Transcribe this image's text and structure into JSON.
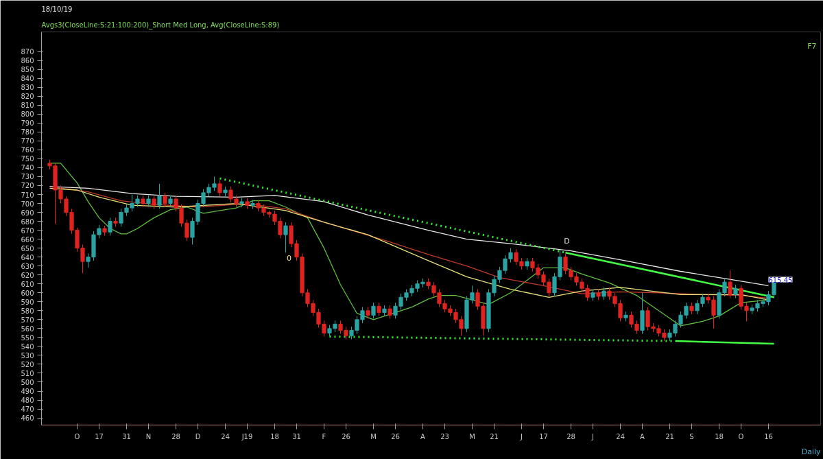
{
  "chart_data": {
    "type": "candlestick",
    "title": "18/10/19",
    "subtitle": "Avgs3(CloseLine:S:21:100:200)_Short Med Long, Avg(CloseLine:S:89)",
    "categories": [
      null,
      null,
      null,
      null,
      null,
      "O",
      null,
      null,
      null,
      "17",
      null,
      null,
      null,
      null,
      "31",
      null,
      null,
      null,
      "N",
      null,
      null,
      null,
      null,
      "28",
      null,
      null,
      null,
      "D",
      null,
      null,
      null,
      null,
      "24",
      null,
      null,
      null,
      "J19",
      null,
      null,
      null,
      null,
      "18",
      null,
      null,
      null,
      "31",
      null,
      null,
      null,
      null,
      "F",
      null,
      null,
      null,
      "26",
      null,
      null,
      null,
      null,
      "M",
      null,
      null,
      null,
      "26",
      null,
      null,
      null,
      null,
      "A",
      null,
      null,
      null,
      "23",
      null,
      null,
      null,
      null,
      "M",
      null,
      null,
      null,
      "21",
      null,
      null,
      null,
      null,
      "J",
      null,
      null,
      null,
      "17",
      null,
      null,
      null,
      null,
      "28",
      null,
      null,
      null,
      "J",
      null,
      null,
      null,
      null,
      "24",
      null,
      null,
      null,
      "A",
      null,
      null,
      null,
      null,
      "21",
      null,
      null,
      null,
      "S",
      null,
      null,
      null,
      null,
      "18",
      null,
      null,
      null,
      "O",
      null,
      null,
      null,
      null,
      "16",
      null
    ],
    "ohlc": [
      [
        745,
        749,
        738,
        742
      ],
      [
        742,
        745,
        677,
        715
      ],
      [
        715,
        720,
        700,
        705
      ],
      [
        705,
        708,
        686,
        690
      ],
      [
        690,
        694,
        666,
        670
      ],
      [
        670,
        673,
        646,
        650
      ],
      [
        650,
        654,
        622,
        635
      ],
      [
        635,
        644,
        628,
        640
      ],
      [
        640,
        669,
        636,
        665
      ],
      [
        665,
        676,
        661,
        672
      ],
      [
        672,
        675,
        664,
        668
      ],
      [
        668,
        684,
        664,
        680
      ],
      [
        680,
        684,
        674,
        678
      ],
      [
        678,
        694,
        674,
        690
      ],
      [
        690,
        699,
        686,
        695
      ],
      [
        695,
        710,
        691,
        700
      ],
      [
        700,
        709,
        696,
        705
      ],
      [
        705,
        709,
        696,
        700
      ],
      [
        700,
        709,
        696,
        705
      ],
      [
        705,
        708,
        694,
        698
      ],
      [
        698,
        722,
        694,
        708
      ],
      [
        708,
        712,
        696,
        700
      ],
      [
        700,
        709,
        696,
        705
      ],
      [
        705,
        708,
        691,
        695
      ],
      [
        695,
        699,
        674,
        678
      ],
      [
        678,
        682,
        658,
        662
      ],
      [
        662,
        684,
        654,
        680
      ],
      [
        680,
        704,
        676,
        700
      ],
      [
        700,
        716,
        696,
        712
      ],
      [
        712,
        722,
        708,
        718
      ],
      [
        718,
        730,
        714,
        722
      ],
      [
        722,
        726,
        708,
        712
      ],
      [
        712,
        719,
        708,
        715
      ],
      [
        715,
        719,
        701,
        705
      ],
      [
        705,
        709,
        696,
        700
      ],
      [
        700,
        706,
        696,
        702
      ],
      [
        702,
        706,
        694,
        698
      ],
      [
        698,
        704,
        694,
        700
      ],
      [
        700,
        704,
        691,
        695
      ],
      [
        695,
        699,
        686,
        690
      ],
      [
        690,
        692,
        684,
        688
      ],
      [
        688,
        692,
        676,
        680
      ],
      [
        680,
        684,
        661,
        665
      ],
      [
        665,
        679,
        645,
        675
      ],
      [
        675,
        679,
        651,
        655
      ],
      [
        655,
        659,
        636,
        640
      ],
      [
        640,
        644,
        596,
        600
      ],
      [
        600,
        604,
        584,
        588
      ],
      [
        588,
        592,
        574,
        578
      ],
      [
        578,
        582,
        561,
        565
      ],
      [
        565,
        569,
        551,
        555
      ],
      [
        555,
        564,
        551,
        560
      ],
      [
        560,
        569,
        556,
        565
      ],
      [
        565,
        569,
        554,
        558
      ],
      [
        558,
        562,
        548,
        552
      ],
      [
        552,
        562,
        548,
        558
      ],
      [
        558,
        574,
        554,
        570
      ],
      [
        570,
        584,
        566,
        580
      ],
      [
        580,
        584,
        571,
        575
      ],
      [
        575,
        589,
        571,
        585
      ],
      [
        585,
        589,
        574,
        578
      ],
      [
        578,
        586,
        574,
        582
      ],
      [
        582,
        586,
        571,
        575
      ],
      [
        575,
        589,
        571,
        585
      ],
      [
        585,
        599,
        581,
        595
      ],
      [
        595,
        604,
        591,
        600
      ],
      [
        600,
        609,
        596,
        605
      ],
      [
        605,
        614,
        601,
        610
      ],
      [
        610,
        616,
        606,
        612
      ],
      [
        612,
        616,
        604,
        608
      ],
      [
        608,
        612,
        596,
        600
      ],
      [
        600,
        604,
        584,
        588
      ],
      [
        588,
        592,
        578,
        582
      ],
      [
        582,
        586,
        574,
        578
      ],
      [
        578,
        582,
        566,
        570
      ],
      [
        570,
        574,
        552,
        560
      ],
      [
        560,
        596,
        556,
        592
      ],
      [
        592,
        608,
        588,
        600
      ],
      [
        600,
        604,
        581,
        585
      ],
      [
        585,
        589,
        552,
        560
      ],
      [
        560,
        604,
        556,
        600
      ],
      [
        600,
        619,
        596,
        615
      ],
      [
        615,
        629,
        611,
        625
      ],
      [
        625,
        642,
        621,
        638
      ],
      [
        638,
        650,
        634,
        645
      ],
      [
        645,
        649,
        631,
        635
      ],
      [
        635,
        639,
        626,
        630
      ],
      [
        630,
        639,
        626,
        635
      ],
      [
        635,
        639,
        624,
        628
      ],
      [
        628,
        632,
        616,
        620
      ],
      [
        620,
        624,
        608,
        612
      ],
      [
        612,
        616,
        596,
        600
      ],
      [
        600,
        622,
        596,
        618
      ],
      [
        618,
        648,
        614,
        640
      ],
      [
        640,
        644,
        621,
        625
      ],
      [
        625,
        629,
        614,
        618
      ],
      [
        618,
        622,
        608,
        612
      ],
      [
        612,
        616,
        601,
        605
      ],
      [
        605,
        609,
        591,
        595
      ],
      [
        595,
        604,
        591,
        600
      ],
      [
        600,
        604,
        592,
        596
      ],
      [
        596,
        606,
        592,
        602
      ],
      [
        602,
        606,
        592,
        596
      ],
      [
        596,
        600,
        584,
        588
      ],
      [
        588,
        592,
        568,
        572
      ],
      [
        572,
        579,
        568,
        575
      ],
      [
        575,
        579,
        561,
        565
      ],
      [
        565,
        569,
        554,
        558
      ],
      [
        558,
        600,
        554,
        580
      ],
      [
        580,
        584,
        558,
        562
      ],
      [
        562,
        566,
        556,
        560
      ],
      [
        560,
        564,
        551,
        555
      ],
      [
        555,
        559,
        546,
        550
      ],
      [
        550,
        559,
        546,
        555
      ],
      [
        555,
        569,
        551,
        565
      ],
      [
        565,
        579,
        561,
        575
      ],
      [
        575,
        589,
        571,
        585
      ],
      [
        585,
        589,
        576,
        580
      ],
      [
        580,
        592,
        576,
        588
      ],
      [
        588,
        599,
        584,
        595
      ],
      [
        595,
        599,
        588,
        592
      ],
      [
        592,
        596,
        560,
        575
      ],
      [
        575,
        604,
        571,
        600
      ],
      [
        600,
        616,
        596,
        612
      ],
      [
        612,
        625,
        594,
        598
      ],
      [
        598,
        609,
        594,
        605
      ],
      [
        605,
        609,
        581,
        585
      ],
      [
        585,
        589,
        568,
        580
      ],
      [
        580,
        587,
        576,
        583
      ],
      [
        583,
        592,
        579,
        588
      ],
      [
        588,
        594,
        584,
        590
      ],
      [
        590,
        602,
        586,
        598
      ],
      [
        598,
        619,
        594,
        615.45
      ]
    ],
    "series": [
      {
        "type": "line",
        "color": "#5fbf3f",
        "line_style": "solid",
        "values": [
          745,
          null,
          745,
          null,
          null,
          723,
          null,
          702,
          null,
          684,
          null,
          672,
          null,
          666,
          666,
          null,
          672,
          null,
          null,
          684,
          null,
          null,
          693,
          null,
          null,
          696,
          null,
          null,
          689,
          null,
          null,
          null,
          693,
          null,
          695,
          null,
          null,
          703,
          null,
          null,
          703,
          null,
          null,
          696,
          null,
          null,
          null,
          684,
          null,
          null,
          650,
          null,
          null,
          609,
          null,
          null,
          577,
          null,
          null,
          570,
          null,
          null,
          576,
          null,
          null,
          null,
          584,
          null,
          null,
          593,
          null,
          597,
          null,
          null,
          597,
          null,
          null,
          null,
          null,
          null,
          587,
          null,
          null,
          null,
          600,
          null,
          null,
          null,
          null,
          null,
          628,
          null,
          null,
          null,
          628,
          null,
          null,
          621,
          null,
          null,
          null,
          null,
          611,
          null,
          null,
          null,
          null,
          597,
          null,
          null,
          null,
          580,
          null,
          null,
          null,
          563,
          null,
          null,
          null,
          568,
          null,
          null,
          574,
          null,
          null,
          null,
          589,
          null,
          null,
          null,
          null,
          592,
          null
        ]
      },
      {
        "type": "line",
        "color": "#c0392b",
        "line_style": "solid",
        "values": [
          719,
          null,
          null,
          null,
          null,
          null,
          null,
          713,
          null,
          null,
          null,
          null,
          null,
          703,
          null,
          null,
          null,
          null,
          null,
          699,
          null,
          null,
          null,
          null,
          null,
          null,
          null,
          696,
          null,
          null,
          null,
          null,
          null,
          null,
          699,
          null,
          null,
          699,
          null,
          null,
          null,
          null,
          null,
          694,
          null,
          null,
          null,
          null,
          null,
          null,
          679,
          null,
          null,
          null,
          null,
          null,
          668,
          null,
          null,
          null,
          null,
          null,
          657,
          null,
          null,
          null,
          null,
          null,
          null,
          643,
          null,
          null,
          null,
          null,
          null,
          null,
          630,
          null,
          null,
          null,
          null,
          null,
          617,
          null,
          null,
          null,
          null,
          null,
          null,
          null,
          608,
          null,
          null,
          null,
          null,
          null,
          null,
          599,
          null,
          null,
          null,
          null,
          null,
          null,
          601,
          null,
          null,
          null,
          null,
          null,
          null,
          600,
          null,
          null,
          null,
          null,
          null,
          null,
          null,
          598,
          null,
          null,
          null,
          null,
          null,
          null,
          597,
          null,
          null,
          null,
          null,
          594,
          null
        ]
      },
      {
        "type": "line",
        "color": "#e8e8e8",
        "line_style": "solid",
        "values": [
          719,
          null,
          null,
          null,
          null,
          null,
          null,
          717,
          null,
          null,
          null,
          null,
          null,
          null,
          null,
          711,
          null,
          null,
          null,
          null,
          null,
          null,
          null,
          708,
          null,
          null,
          null,
          null,
          null,
          null,
          null,
          null,
          null,
          null,
          707,
          null,
          null,
          null,
          null,
          null,
          null,
          709,
          null,
          null,
          null,
          null,
          null,
          null,
          null,
          null,
          702,
          null,
          null,
          null,
          null,
          null,
          null,
          null,
          687,
          null,
          null,
          null,
          null,
          null,
          null,
          null,
          null,
          null,
          null,
          670,
          null,
          null,
          null,
          null,
          null,
          null,
          660,
          null,
          null,
          null,
          null,
          null,
          null,
          null,
          655,
          null,
          null,
          null,
          null,
          null,
          null,
          null,
          null,
          null,
          null,
          647,
          null,
          null,
          null,
          null,
          null,
          null,
          null,
          null,
          637,
          null,
          null,
          null,
          null,
          null,
          null,
          null,
          null,
          null,
          null,
          624,
          null,
          null,
          null,
          null,
          null,
          null,
          null,
          616,
          null,
          null,
          null,
          null,
          null,
          null,
          null,
          608,
          null
        ]
      },
      {
        "type": "line",
        "color": "#e6e27a",
        "line_style": "solid",
        "values": [
          717,
          null,
          null,
          null,
          null,
          715,
          null,
          null,
          null,
          707,
          null,
          null,
          null,
          null,
          null,
          698,
          null,
          null,
          null,
          null,
          null,
          null,
          null,
          696,
          null,
          null,
          null,
          null,
          null,
          null,
          null,
          null,
          null,
          null,
          700,
          null,
          null,
          null,
          null,
          null,
          null,
          null,
          null,
          692,
          null,
          null,
          null,
          null,
          null,
          null,
          679,
          null,
          null,
          null,
          null,
          null,
          null,
          null,
          665,
          null,
          null,
          null,
          null,
          null,
          null,
          null,
          null,
          null,
          null,
          636,
          null,
          null,
          null,
          null,
          null,
          null,
          618,
          null,
          null,
          null,
          null,
          null,
          null,
          null,
          604,
          null,
          null,
          null,
          null,
          null,
          null,
          595,
          null,
          null,
          null,
          null,
          null,
          602,
          null,
          null,
          null,
          null,
          null,
          null,
          606,
          null,
          null,
          null,
          null,
          null,
          null,
          null,
          null,
          null,
          null,
          598,
          null,
          null,
          null,
          null,
          null,
          null,
          null,
          null,
          null,
          null,
          598,
          null,
          null,
          null,
          null,
          592,
          null
        ]
      },
      {
        "type": "line",
        "color": "#33ee33",
        "line_style": "dotted",
        "values": [
          null,
          null,
          null,
          null,
          null,
          null,
          null,
          null,
          null,
          null,
          null,
          null,
          null,
          null,
          null,
          null,
          null,
          null,
          null,
          null,
          null,
          null,
          null,
          null,
          null,
          null,
          null,
          null,
          null,
          null,
          null,
          728,
          null,
          null,
          null,
          null,
          null,
          null,
          null,
          null,
          null,
          null,
          null,
          null,
          null,
          null,
          null,
          null,
          null,
          null,
          null,
          null,
          null,
          null,
          null,
          null,
          null,
          null,
          null,
          null,
          null,
          null,
          null,
          null,
          null,
          null,
          null,
          null,
          null,
          null,
          null,
          null,
          null,
          null,
          null,
          null,
          null,
          null,
          null,
          null,
          null,
          null,
          null,
          null,
          null,
          null,
          null,
          null,
          null,
          null,
          null,
          null,
          null,
          null,
          645,
          null,
          null,
          null,
          null,
          null,
          null,
          null,
          null,
          null,
          null,
          null,
          null,
          null,
          null,
          null,
          null,
          null,
          null,
          null,
          null,
          null,
          null,
          null,
          null,
          null,
          null,
          null,
          null,
          null,
          null,
          null,
          null,
          null,
          null,
          null,
          null,
          null,
          null
        ]
      },
      {
        "type": "line",
        "color": "#44ff44",
        "line_style": "solid",
        "values": [
          null,
          null,
          null,
          null,
          null,
          null,
          null,
          null,
          null,
          null,
          null,
          null,
          null,
          null,
          null,
          null,
          null,
          null,
          null,
          null,
          null,
          null,
          null,
          null,
          null,
          null,
          null,
          null,
          null,
          null,
          null,
          null,
          null,
          null,
          null,
          null,
          null,
          null,
          null,
          null,
          null,
          null,
          null,
          null,
          null,
          null,
          null,
          null,
          null,
          null,
          null,
          null,
          null,
          null,
          null,
          null,
          null,
          null,
          null,
          null,
          null,
          null,
          null,
          null,
          null,
          null,
          null,
          null,
          null,
          null,
          null,
          null,
          null,
          null,
          null,
          null,
          null,
          null,
          null,
          null,
          null,
          null,
          null,
          null,
          null,
          null,
          null,
          null,
          null,
          null,
          null,
          null,
          null,
          null,
          645,
          null,
          null,
          null,
          null,
          null,
          null,
          null,
          null,
          null,
          null,
          null,
          null,
          null,
          null,
          null,
          null,
          null,
          null,
          null,
          null,
          null,
          null,
          null,
          null,
          null,
          null,
          null,
          null,
          null,
          null,
          null,
          null,
          null,
          null,
          null,
          null,
          null,
          595
        ]
      },
      {
        "type": "line",
        "color": "#33ee33",
        "line_style": "dotted",
        "values": [
          null,
          null,
          null,
          null,
          null,
          null,
          null,
          null,
          null,
          null,
          null,
          null,
          null,
          null,
          null,
          null,
          null,
          null,
          null,
          null,
          null,
          null,
          null,
          null,
          null,
          null,
          null,
          null,
          null,
          null,
          null,
          null,
          null,
          null,
          null,
          null,
          null,
          null,
          null,
          null,
          null,
          null,
          null,
          null,
          null,
          null,
          null,
          null,
          null,
          null,
          null,
          551,
          null,
          null,
          null,
          null,
          null,
          null,
          null,
          null,
          null,
          null,
          null,
          null,
          null,
          null,
          null,
          null,
          null,
          null,
          null,
          null,
          null,
          null,
          null,
          null,
          null,
          null,
          null,
          null,
          null,
          null,
          null,
          null,
          null,
          null,
          null,
          null,
          null,
          null,
          null,
          null,
          null,
          null,
          null,
          null,
          null,
          null,
          null,
          null,
          null,
          null,
          null,
          null,
          null,
          null,
          null,
          null,
          null,
          null,
          null,
          null,
          null,
          null,
          546,
          null,
          null,
          null,
          null,
          null,
          null,
          null,
          null,
          null,
          null,
          null,
          null,
          null,
          null,
          null,
          null,
          null,
          null
        ]
      },
      {
        "type": "line",
        "color": "#44ff44",
        "line_style": "solid",
        "values": [
          null,
          null,
          null,
          null,
          null,
          null,
          null,
          null,
          null,
          null,
          null,
          null,
          null,
          null,
          null,
          null,
          null,
          null,
          null,
          null,
          null,
          null,
          null,
          null,
          null,
          null,
          null,
          null,
          null,
          null,
          null,
          null,
          null,
          null,
          null,
          null,
          null,
          null,
          null,
          null,
          null,
          null,
          null,
          null,
          null,
          null,
          null,
          null,
          null,
          null,
          null,
          null,
          null,
          null,
          null,
          null,
          null,
          null,
          null,
          null,
          null,
          null,
          null,
          null,
          null,
          null,
          null,
          null,
          null,
          null,
          null,
          null,
          null,
          null,
          null,
          null,
          null,
          null,
          null,
          null,
          null,
          null,
          null,
          null,
          null,
          null,
          null,
          null,
          null,
          null,
          null,
          null,
          null,
          null,
          null,
          null,
          null,
          null,
          null,
          null,
          null,
          null,
          null,
          null,
          null,
          null,
          null,
          null,
          null,
          null,
          null,
          null,
          null,
          null,
          546,
          null,
          null,
          null,
          null,
          null,
          null,
          null,
          null,
          null,
          null,
          null,
          null,
          null,
          null,
          null,
          null,
          null,
          543
        ]
      }
    ],
    "ylim": [
      452,
      892
    ],
    "yticks": [
      460,
      470,
      480,
      490,
      500,
      510,
      520,
      530,
      540,
      550,
      560,
      570,
      580,
      590,
      600,
      610,
      620,
      630,
      640,
      650,
      660,
      670,
      680,
      690,
      700,
      710,
      720,
      730,
      740,
      750,
      760,
      770,
      780,
      790,
      800,
      810,
      820,
      830,
      840,
      850,
      860,
      870
    ],
    "annotations": [
      "615.45",
      "D",
      "0",
      "F7",
      "Daily"
    ],
    "grid": false
  }
}
